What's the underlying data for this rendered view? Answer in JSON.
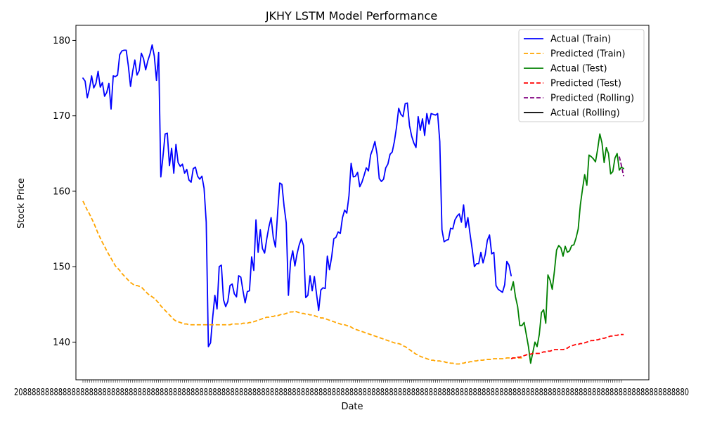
{
  "chart_data": {
    "type": "line",
    "title": "JKHY LSTM Model Performance",
    "xlabel": "Date",
    "ylabel": "Stock Price",
    "ylim": [
      135,
      182
    ],
    "yticks": [
      140,
      150,
      160,
      170,
      180
    ],
    "x_tick_label_note": "dense overlapping date labels (unreadable)",
    "legend_position": "top-right",
    "grid": false,
    "x_count": 250,
    "series": [
      {
        "name": "Actual (Train)",
        "color": "#0000ff",
        "style": "solid",
        "x_start": 0,
        "values": [
          175.0,
          174.6,
          172.4,
          173.6,
          175.3,
          173.7,
          174.3,
          175.9,
          173.8,
          174.4,
          172.6,
          173.1,
          174.3,
          170.9,
          175.3,
          175.2,
          175.4,
          178.1,
          178.6,
          178.7,
          178.7,
          176.6,
          173.9,
          175.9,
          177.4,
          175.4,
          176.0,
          178.3,
          177.6,
          176.1,
          177.3,
          178.2,
          179.4,
          177.9,
          174.7,
          178.4,
          161.9,
          164.6,
          167.6,
          167.7,
          163.4,
          165.7,
          162.4,
          166.2,
          163.8,
          163.3,
          163.6,
          162.4,
          162.9,
          161.5,
          161.2,
          163.0,
          163.2,
          162.0,
          161.6,
          162.0,
          160.4,
          155.9,
          139.4,
          139.9,
          143.3,
          146.2,
          144.4,
          150.0,
          150.2,
          145.6,
          144.7,
          145.4,
          147.5,
          147.7,
          146.4,
          146.0,
          148.8,
          148.6,
          146.8,
          145.2,
          146.7,
          146.8,
          151.3,
          149.5,
          156.2,
          151.9,
          154.9,
          152.4,
          151.8,
          153.7,
          155.3,
          156.5,
          153.9,
          152.6,
          157.1,
          161.1,
          160.9,
          158.0,
          155.8,
          146.2,
          150.7,
          152.1,
          150.1,
          151.7,
          152.9,
          153.7,
          152.8,
          145.9,
          146.2,
          148.8,
          146.8,
          148.7,
          146.4,
          144.2,
          146.9,
          147.2,
          147.1,
          151.4,
          149.6,
          151.3,
          153.7,
          153.9,
          154.6,
          154.4,
          156.5,
          157.5,
          157.1,
          159.4,
          163.7,
          161.9,
          162.0,
          162.5,
          160.6,
          161.2,
          162.1,
          163.1,
          162.7,
          164.8,
          165.6,
          166.6,
          164.9,
          161.7,
          161.3,
          161.6,
          163.1,
          163.6,
          164.9,
          165.2,
          166.6,
          168.5,
          171.0,
          170.2,
          169.9,
          171.6,
          171.7,
          168.7,
          167.3,
          166.4,
          165.8,
          169.9,
          168.1,
          169.6,
          167.4,
          170.3,
          168.9,
          170.3,
          170.2,
          170.1,
          170.3,
          166.6,
          154.9,
          153.3,
          153.5,
          153.6,
          155.1,
          155.0,
          156.2,
          156.7,
          157.0,
          155.9,
          158.2,
          155.2,
          156.5,
          154.3,
          152.3,
          150.0,
          150.4,
          150.4,
          151.9,
          150.5,
          151.6,
          153.5,
          154.2,
          151.7,
          151.9,
          147.5,
          147.0,
          146.8,
          146.6,
          147.6,
          150.7,
          150.2,
          148.8
        ]
      },
      {
        "name": "Predicted (Train)",
        "color": "#ffa500",
        "style": "dashed",
        "x_start": 0,
        "values": [
          158.7,
          158.1,
          157.5,
          157.0,
          156.4,
          155.8,
          155.1,
          154.4,
          153.8,
          153.2,
          152.7,
          152.1,
          151.6,
          151.1,
          150.6,
          150.1,
          149.8,
          149.5,
          149.1,
          148.8,
          148.5,
          148.2,
          147.9,
          147.7,
          147.5,
          147.5,
          147.4,
          147.3,
          147.0,
          146.7,
          146.4,
          146.2,
          146.0,
          145.8,
          145.5,
          145.2,
          144.8,
          144.5,
          144.2,
          143.9,
          143.6,
          143.3,
          143.0,
          142.8,
          142.7,
          142.6,
          142.5,
          142.4,
          142.4,
          142.3,
          142.3,
          142.3,
          142.3,
          142.3,
          142.3,
          142.3,
          142.3,
          142.3,
          142.3,
          142.3,
          142.3,
          142.3,
          142.3,
          142.3,
          142.3,
          142.3,
          142.3,
          142.3,
          142.3,
          142.4,
          142.4,
          142.4,
          142.4,
          142.4,
          142.5,
          142.5,
          142.5,
          142.6,
          142.6,
          142.7,
          142.8,
          142.9,
          143.0,
          143.1,
          143.2,
          143.3,
          143.3,
          143.4,
          143.4,
          143.5,
          143.5,
          143.6,
          143.7,
          143.7,
          143.8,
          143.9,
          144.0,
          144.0,
          144.1,
          144.0,
          143.9,
          143.8,
          143.8,
          143.7,
          143.7,
          143.6,
          143.6,
          143.5,
          143.4,
          143.3,
          143.2,
          143.2,
          143.1,
          143.0,
          142.9,
          142.8,
          142.7,
          142.6,
          142.5,
          142.4,
          142.3,
          142.3,
          142.2,
          142.1,
          142.0,
          141.8,
          141.7,
          141.6,
          141.5,
          141.4,
          141.3,
          141.2,
          141.1,
          141.0,
          140.9,
          140.8,
          140.7,
          140.6,
          140.5,
          140.4,
          140.3,
          140.2,
          140.1,
          140.0,
          139.9,
          139.8,
          139.8,
          139.7,
          139.5,
          139.4,
          139.2,
          139.0,
          138.8,
          138.6,
          138.4,
          138.3,
          138.1,
          138.0,
          137.9,
          137.8,
          137.7,
          137.6,
          137.6,
          137.5,
          137.5,
          137.5,
          137.4,
          137.4,
          137.3,
          137.3,
          137.2,
          137.2,
          137.1,
          137.1,
          137.1,
          137.2,
          137.2,
          137.3,
          137.3,
          137.4,
          137.4,
          137.5,
          137.5,
          137.6,
          137.6,
          137.6,
          137.7,
          137.7,
          137.7,
          137.7,
          137.8,
          137.8,
          137.8,
          137.8,
          137.8,
          137.8,
          137.9,
          137.9,
          137.9,
          137.9,
          137.9,
          137.9,
          137.9,
          137.9
        ]
      },
      {
        "name": "Actual (Test)",
        "color": "#008000",
        "style": "solid",
        "x_start": 198,
        "values": [
          146.9,
          148.0,
          146.0,
          144.7,
          142.2,
          142.2,
          142.6,
          141.0,
          139.4,
          137.2,
          138.6,
          140.0,
          139.4,
          141.0,
          143.9,
          144.3,
          142.5,
          148.9,
          148.2,
          147.0,
          149.4,
          152.2,
          152.8,
          152.5,
          151.4,
          152.7,
          151.9,
          152.1,
          152.8,
          152.9,
          153.8,
          155.0,
          158.2,
          160.3,
          162.2,
          160.8,
          164.8,
          164.6,
          164.3,
          163.9,
          165.6,
          167.6,
          166.4,
          163.8,
          165.8,
          165.0,
          162.3,
          162.6,
          164.4,
          165.0,
          162.8,
          163.2,
          163.0
        ]
      },
      {
        "name": "Predicted (Test)",
        "color": "#ff0000",
        "style": "dashed",
        "x_start": 198,
        "values": [
          137.8,
          137.9,
          137.9,
          138.0,
          138.0,
          138.1,
          138.2,
          138.3,
          138.4,
          138.4,
          138.5,
          138.5,
          138.5,
          138.5,
          138.6,
          138.7,
          138.7,
          138.8,
          138.8,
          138.9,
          139.0,
          139.0,
          139.0,
          139.0,
          139.0,
          139.1,
          139.2,
          139.4,
          139.5,
          139.6,
          139.7,
          139.7,
          139.8,
          139.8,
          139.9,
          140.0,
          140.1,
          140.2,
          140.2,
          140.3,
          140.3,
          140.4,
          140.5,
          140.5,
          140.6,
          140.7,
          140.8,
          140.8,
          140.9,
          140.9,
          141.0,
          141.0,
          141.0
        ]
      },
      {
        "name": "Predicted (Rolling)",
        "color": "#800080",
        "style": "dashed",
        "x_start": 248,
        "values": [
          164.6,
          163.4,
          162.0
        ]
      },
      {
        "name": "Actual (Rolling)",
        "color": "#000000",
        "style": "solid",
        "x_start": 248,
        "values": []
      }
    ]
  }
}
